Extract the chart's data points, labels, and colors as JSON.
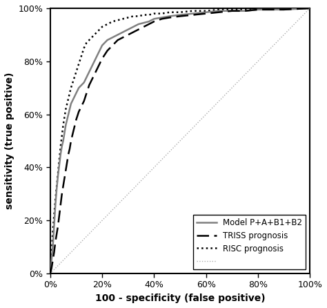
{
  "title": "",
  "xlabel": "100 - specificity (false positive)",
  "ylabel": "sensitivity (true positive)",
  "xlim": [
    0,
    100
  ],
  "ylim": [
    0,
    100
  ],
  "xticks": [
    0,
    20,
    40,
    60,
    80,
    100
  ],
  "yticks": [
    0,
    20,
    40,
    60,
    80,
    100
  ],
  "xticklabels": [
    "0%",
    "20%",
    "40%",
    "60%",
    "80%",
    "100%"
  ],
  "yticklabels": [
    "0%",
    "20%",
    "40%",
    "60%",
    "80%",
    "100%"
  ],
  "legend_labels": [
    "Model P+A+B1+B2",
    "TRISS prognosis",
    "RISC prognosis",
    ""
  ],
  "model_color": "#808080",
  "triss_color": "#000000",
  "risc_color": "#000000",
  "diagonal_color": "#aaaaaa",
  "background_color": "#ffffff",
  "legend_fontsize": 8.5,
  "axis_fontsize": 10,
  "tick_fontsize": 9,
  "model_fpr": [
    0,
    0.5,
    1,
    1.5,
    2,
    2.5,
    3,
    3.5,
    4,
    4.5,
    5,
    5.5,
    6,
    6.5,
    7,
    7.5,
    8,
    9,
    10,
    11,
    12,
    13,
    14,
    15,
    16,
    17,
    18,
    19,
    20,
    22,
    24,
    26,
    28,
    30,
    32,
    34,
    36,
    38,
    40,
    43,
    46,
    50,
    55,
    60,
    65,
    70,
    75,
    80,
    90,
    100
  ],
  "model_tpr": [
    0,
    5,
    10,
    18,
    26,
    32,
    37,
    41,
    45,
    48,
    50,
    53,
    56,
    58,
    60,
    62,
    64,
    66,
    68,
    70,
    71,
    72,
    74,
    76,
    78,
    80,
    82,
    84,
    86,
    88,
    89,
    90,
    91,
    92,
    93,
    94,
    94.5,
    95,
    96,
    96.5,
    97,
    97.5,
    98,
    98.5,
    99,
    99,
    99,
    99.5,
    99.5,
    100
  ],
  "triss_fpr": [
    0,
    0.5,
    1,
    1.5,
    2,
    2.5,
    3,
    3.5,
    4,
    4.5,
    5,
    5.5,
    6,
    6.5,
    7,
    7.5,
    8,
    9,
    10,
    11,
    12,
    13,
    14,
    15,
    16,
    17,
    18,
    19,
    20,
    22,
    24,
    26,
    28,
    30,
    32,
    34,
    36,
    38,
    40,
    43,
    46,
    50,
    55,
    60,
    65,
    70,
    75,
    80,
    90,
    100
  ],
  "triss_tpr": [
    0,
    2,
    5,
    8,
    12,
    15,
    18,
    22,
    26,
    30,
    33,
    36,
    39,
    42,
    45,
    47,
    50,
    54,
    58,
    61,
    63,
    65,
    68,
    71,
    73,
    75,
    77,
    79,
    81,
    84,
    86,
    88,
    89,
    90,
    91,
    92,
    93,
    94,
    95,
    96,
    96.5,
    97,
    97.5,
    98,
    98.5,
    99,
    99,
    99.5,
    99.5,
    100
  ],
  "risc_fpr": [
    0,
    0.5,
    1,
    1.5,
    2,
    2.5,
    3,
    3.5,
    4,
    4.5,
    5,
    5.5,
    6,
    6.5,
    7,
    7.5,
    8,
    9,
    10,
    11,
    12,
    13,
    14,
    15,
    16,
    17,
    18,
    19,
    20,
    22,
    24,
    26,
    28,
    30,
    32,
    34,
    36,
    38,
    40,
    43,
    46,
    50,
    55,
    60,
    65,
    70,
    75,
    80,
    90,
    100
  ],
  "risc_tpr": [
    0,
    7,
    16,
    22,
    28,
    33,
    38,
    43,
    48,
    52,
    56,
    59,
    62,
    64,
    66,
    68,
    70,
    73,
    76,
    79,
    82,
    85,
    87,
    88,
    89,
    90,
    91,
    92,
    93,
    94,
    95,
    95.5,
    96,
    96.5,
    97,
    97,
    97.5,
    97.5,
    98,
    98,
    98.5,
    98.5,
    99,
    99,
    99.5,
    99.5,
    99.5,
    99.5,
    100,
    100
  ]
}
